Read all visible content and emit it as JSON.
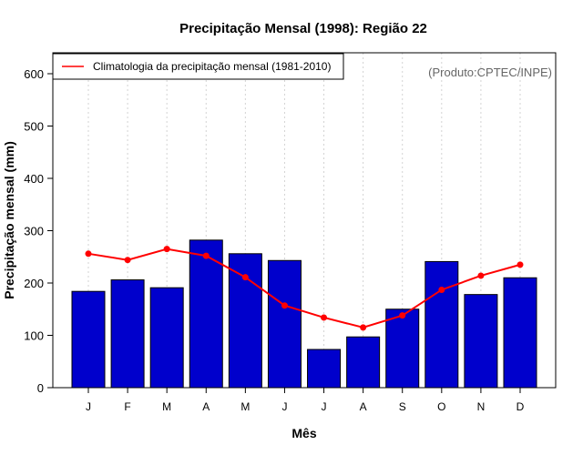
{
  "chart_data": {
    "type": "bar",
    "title": "Precipitação Mensal (1998): Região 22",
    "xlabel": "Mês",
    "ylabel": "Precipitação mensal (mm)",
    "categories": [
      "J",
      "F",
      "M",
      "A",
      "M",
      "J",
      "J",
      "A",
      "S",
      "O",
      "N",
      "D"
    ],
    "ylim": [
      0,
      640
    ],
    "yticks": [
      0,
      100,
      200,
      300,
      400,
      500,
      600
    ],
    "grid": "vertical-dotted",
    "source_note": "(Produto:CPTEC/INPE)",
    "series": [
      {
        "name": "Precipitação mensal (1998)",
        "type": "bar",
        "color": "#0000cc",
        "values": [
          184,
          206,
          191,
          282,
          256,
          243,
          73,
          97,
          150,
          241,
          178,
          210
        ]
      },
      {
        "name": "Climatologia da precipitação mensal (1981-2010)",
        "type": "line",
        "color": "#ff0000",
        "values": [
          256,
          244,
          265,
          252,
          211,
          157,
          134,
          115,
          138,
          187,
          214,
          235
        ]
      }
    ],
    "legend": {
      "position": "top-left",
      "entries": [
        "Climatologia da precipitação mensal (1981-2010)"
      ]
    }
  }
}
